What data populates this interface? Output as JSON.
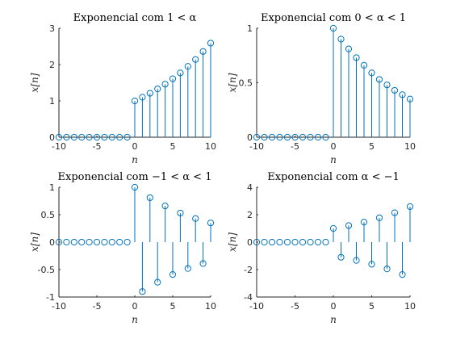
{
  "chart_data": [
    {
      "type": "stem",
      "title": "Exponencial com 1 < α",
      "xlabel": "n",
      "ylabel": "x[n]",
      "xlim": [
        -10,
        10
      ],
      "ylim": [
        0,
        3
      ],
      "xticks": [
        -10,
        -5,
        0,
        5,
        10
      ],
      "yticks": [
        0,
        1,
        2,
        3
      ],
      "tick_labels_x": [
        "-10",
        "-5",
        "0",
        "5",
        "10"
      ],
      "tick_labels_y": [
        "0",
        "1",
        "2",
        "3"
      ],
      "x": [
        -10,
        -9,
        -8,
        -7,
        -6,
        -5,
        -4,
        -3,
        -2,
        -1,
        0,
        1,
        2,
        3,
        4,
        5,
        6,
        7,
        8,
        9,
        10
      ],
      "values": [
        0,
        0,
        0,
        0,
        0,
        0,
        0,
        0,
        0,
        0,
        1.0,
        1.1,
        1.21,
        1.33,
        1.46,
        1.61,
        1.77,
        1.95,
        2.14,
        2.36,
        2.59
      ]
    },
    {
      "type": "stem",
      "title": "Exponencial com 0 < α < 1",
      "xlabel": "n",
      "ylabel": "x[n]",
      "xlim": [
        -10,
        10
      ],
      "ylim": [
        0,
        1
      ],
      "xticks": [
        -10,
        -5,
        0,
        5,
        10
      ],
      "yticks": [
        0,
        0.5,
        1
      ],
      "tick_labels_x": [
        "-10",
        "-5",
        "0",
        "5",
        "10"
      ],
      "tick_labels_y": [
        "0",
        "0.5",
        "1"
      ],
      "x": [
        -10,
        -9,
        -8,
        -7,
        -6,
        -5,
        -4,
        -3,
        -2,
        -1,
        0,
        1,
        2,
        3,
        4,
        5,
        6,
        7,
        8,
        9,
        10
      ],
      "values": [
        0,
        0,
        0,
        0,
        0,
        0,
        0,
        0,
        0,
        0,
        1.0,
        0.9,
        0.81,
        0.73,
        0.66,
        0.59,
        0.53,
        0.48,
        0.43,
        0.39,
        0.35
      ]
    },
    {
      "type": "stem",
      "title": "Exponencial com −1 < α < 1",
      "xlabel": "n",
      "ylabel": "x[n]",
      "xlim": [
        -10,
        10
      ],
      "ylim": [
        -1,
        1
      ],
      "xticks": [
        -10,
        -5,
        0,
        5,
        10
      ],
      "yticks": [
        -1,
        -0.5,
        0,
        0.5,
        1
      ],
      "tick_labels_x": [
        "-10",
        "-5",
        "0",
        "5",
        "10"
      ],
      "tick_labels_y": [
        "-1",
        "-0.5",
        "0",
        "0.5",
        "1"
      ],
      "x": [
        -10,
        -9,
        -8,
        -7,
        -6,
        -5,
        -4,
        -3,
        -2,
        -1,
        0,
        1,
        2,
        3,
        4,
        5,
        6,
        7,
        8,
        9,
        10
      ],
      "values": [
        0,
        0,
        0,
        0,
        0,
        0,
        0,
        0,
        0,
        0,
        1.0,
        -0.9,
        0.81,
        -0.73,
        0.66,
        -0.59,
        0.53,
        -0.48,
        0.43,
        -0.39,
        0.35
      ]
    },
    {
      "type": "stem",
      "title": "Exponencial com α < −1",
      "xlabel": "n",
      "ylabel": "x[n]",
      "xlim": [
        -10,
        10
      ],
      "ylim": [
        -4,
        4
      ],
      "xticks": [
        -10,
        -5,
        0,
        5,
        10
      ],
      "yticks": [
        -4,
        -2,
        0,
        2,
        4
      ],
      "tick_labels_x": [
        "-10",
        "-5",
        "0",
        "5",
        "10"
      ],
      "tick_labels_y": [
        "-4",
        "-2",
        "0",
        "2",
        "4"
      ],
      "x": [
        -10,
        -9,
        -8,
        -7,
        -6,
        -5,
        -4,
        -3,
        -2,
        -1,
        0,
        1,
        2,
        3,
        4,
        5,
        6,
        7,
        8,
        9,
        10
      ],
      "values": [
        0,
        0,
        0,
        0,
        0,
        0,
        0,
        0,
        0,
        0,
        1.0,
        -1.1,
        1.21,
        -1.33,
        1.46,
        -1.61,
        1.77,
        -1.95,
        2.14,
        -2.36,
        2.59
      ]
    }
  ],
  "colors": {
    "series": "#0072BD",
    "axes": "#262626",
    "background": "#ffffff"
  }
}
